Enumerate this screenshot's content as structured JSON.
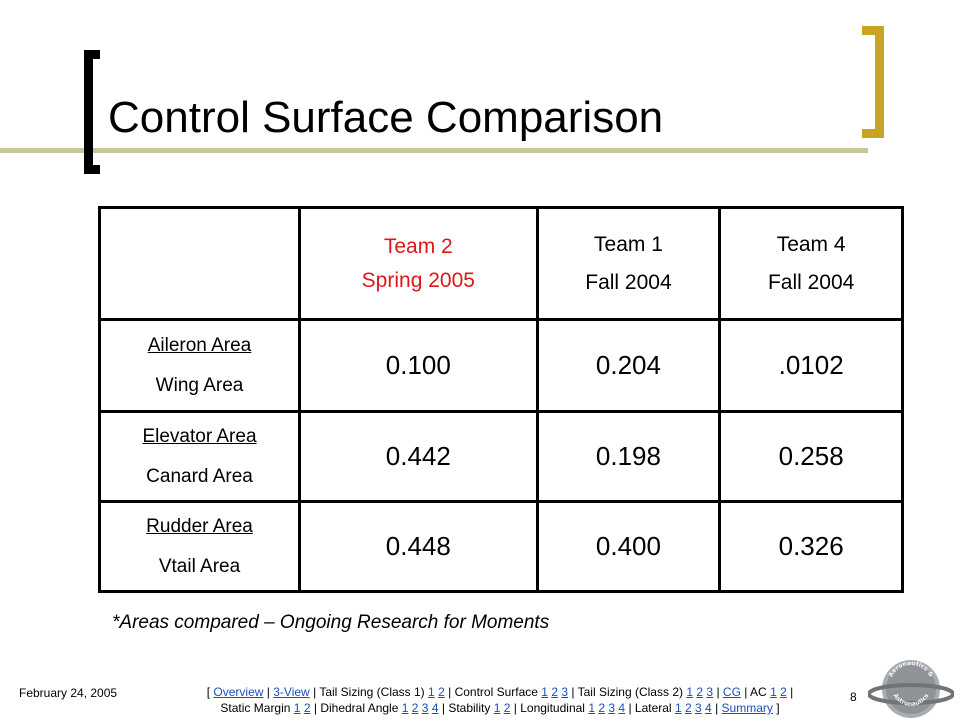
{
  "title": "Control Surface Comparison",
  "table": {
    "headers": [
      {
        "line1": "Team 2",
        "line2": "Spring 2005",
        "highlight_color": "#e0151b"
      },
      {
        "line1": "Team 1",
        "line2": "Fall 2004"
      },
      {
        "line1": "Team 4",
        "line2": "Fall 2004"
      }
    ],
    "rows": [
      {
        "numerator": "Aileron Area",
        "denominator": "Wing Area",
        "values": [
          "0.100",
          "0.204",
          ".0102"
        ]
      },
      {
        "numerator": "Elevator Area",
        "denominator": "Canard Area",
        "values": [
          "0.442",
          "0.198",
          "0.258"
        ]
      },
      {
        "numerator": "Rudder Area",
        "denominator": "Vtail Area",
        "values": [
          "0.448",
          "0.400",
          "0.326"
        ]
      }
    ]
  },
  "note": "*Areas compared – Ongoing Research for Moments",
  "footer": {
    "date": "February 24, 2005",
    "page_number": "8",
    "nav": {
      "open": "[",
      "close": "]",
      "sep": "|",
      "overview": "Overview",
      "three_view": "3-View",
      "tail_sizing_1": "Tail Sizing (Class 1)",
      "control_surface": "Control Surface",
      "tail_sizing_2": "Tail Sizing (Class 2)",
      "cg": "CG",
      "ac": "AC",
      "static_margin": "Static Margin",
      "dihedral_angle": "Dihedral Angle",
      "stability": "Stability",
      "longitudinal": "Longitudinal",
      "lateral": "Lateral",
      "summary": "Summary",
      "n1": "1",
      "n2": "2",
      "n3": "3",
      "n4": "4"
    }
  },
  "colors": {
    "bracket_left": "#000000",
    "bracket_right": "#c9a422",
    "title_line": "#c8c69c",
    "link": "#1a4fb8"
  },
  "logo": {
    "icon": "aeronautics-astronautics-seal-icon",
    "text_top": "Aeronautics &",
    "text_bottom": "Astronautics"
  }
}
